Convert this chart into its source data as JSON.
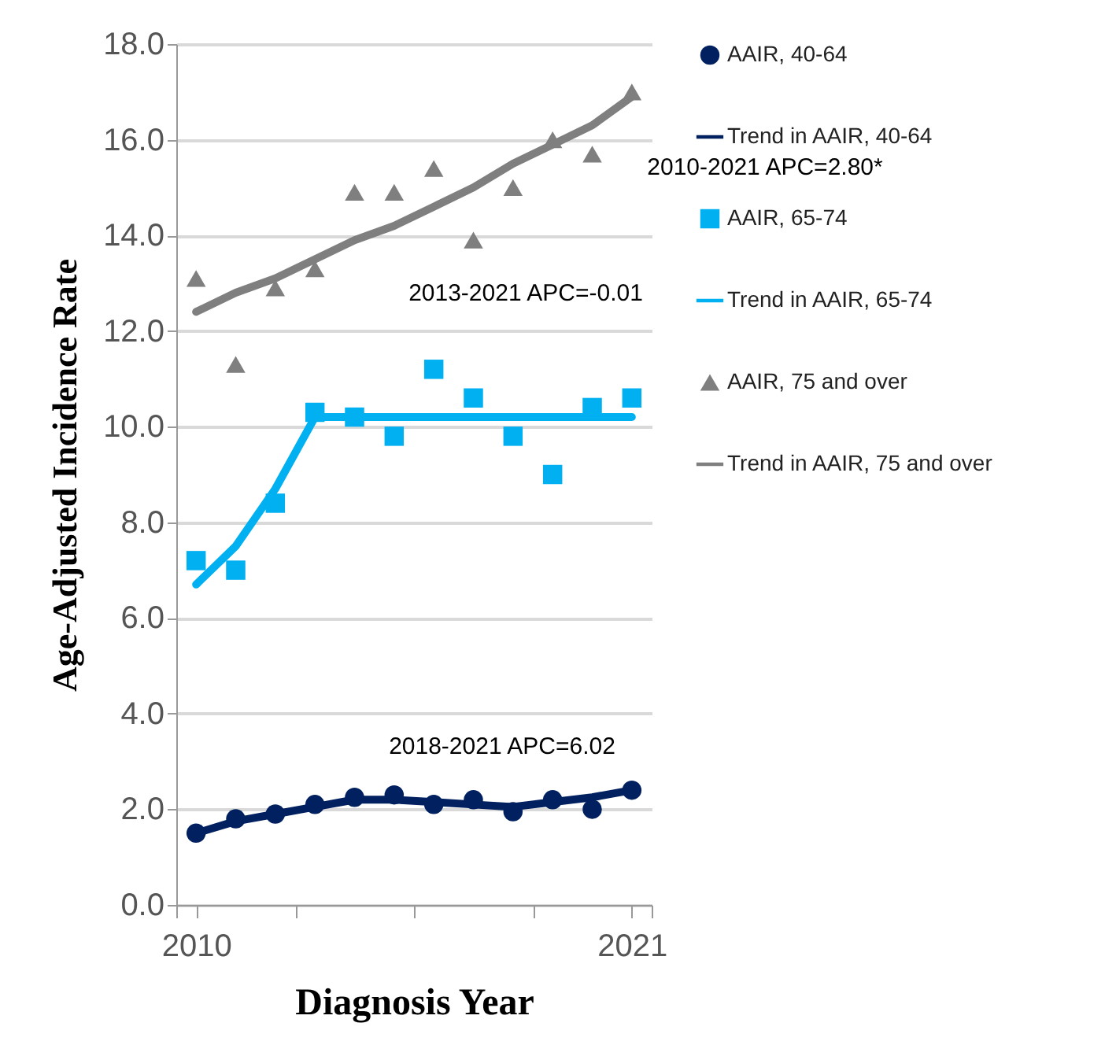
{
  "chart_data": {
    "type": "scatter",
    "xlabel": "Diagnosis Year",
    "ylabel": "Age-Adjusted Incidence Rate",
    "x": [
      2010,
      2011,
      2012,
      2013,
      2014,
      2015,
      2016,
      2017,
      2018,
      2019,
      2020,
      2021
    ],
    "xlim": [
      2009.5,
      2021.5
    ],
    "xticks": [
      {
        "value": 2009.5,
        "label": null
      },
      {
        "value": 2010,
        "label": "2010"
      },
      {
        "value": 2012.5,
        "label": null
      },
      {
        "value": 2015.5,
        "label": null
      },
      {
        "value": 2018.5,
        "label": null
      },
      {
        "value": 2021,
        "label": "2021"
      },
      {
        "value": 2021.5,
        "label": null
      }
    ],
    "ylim": [
      0,
      18
    ],
    "yticks": [
      {
        "value": 0,
        "label": "0.0"
      },
      {
        "value": 2,
        "label": "2.0"
      },
      {
        "value": 4,
        "label": "4.0"
      },
      {
        "value": 6,
        "label": "6.0"
      },
      {
        "value": 8,
        "label": "8.0"
      },
      {
        "value": 10,
        "label": "10.0"
      },
      {
        "value": 12,
        "label": "12.0"
      },
      {
        "value": 14,
        "label": "14.0"
      },
      {
        "value": 16,
        "label": "16.0"
      },
      {
        "value": 18,
        "label": "18.0"
      }
    ],
    "grid": "y",
    "legend": "right",
    "series": [
      {
        "name": "AAIR, 40-64",
        "type": "scatter",
        "marker": "circle",
        "color": "#002060",
        "values": [
          1.5,
          1.8,
          1.9,
          2.1,
          2.25,
          2.3,
          2.1,
          2.2,
          1.95,
          2.2,
          2.0,
          2.4
        ]
      },
      {
        "name": "Trend in AAIR, 40-64",
        "type": "line",
        "line_style": "solid",
        "color": "#002060",
        "values": [
          1.5,
          1.75,
          1.9,
          2.05,
          2.2,
          2.2,
          2.15,
          2.1,
          2.05,
          2.15,
          2.25,
          2.4
        ]
      },
      {
        "name": "AAIR, 65-74",
        "type": "scatter",
        "marker": "square",
        "color": "#00b0f0",
        "values": [
          7.2,
          7.0,
          8.4,
          10.3,
          10.2,
          9.8,
          11.2,
          10.6,
          9.8,
          9.0,
          10.4,
          10.6
        ]
      },
      {
        "name": "Trend in AAIR, 65-74",
        "type": "line",
        "line_style": "solid",
        "color": "#00b0f0",
        "values": [
          6.7,
          7.5,
          8.7,
          10.2,
          10.2,
          10.2,
          10.2,
          10.2,
          10.2,
          10.2,
          10.2,
          10.2
        ]
      },
      {
        "name": "AAIR, 75 and over",
        "type": "scatter",
        "marker": "triangle",
        "color": "#7f7f7f",
        "values": [
          13.1,
          11.3,
          12.9,
          13.3,
          14.9,
          14.9,
          15.4,
          13.9,
          15.0,
          16.0,
          15.7,
          17.0
        ]
      },
      {
        "name": "Trend in AAIR, 75 and over",
        "type": "line",
        "line_style": "solid",
        "color": "#7f7f7f",
        "values": [
          12.4,
          12.8,
          13.1,
          13.5,
          13.9,
          14.2,
          14.6,
          15.0,
          15.5,
          15.9,
          16.3,
          16.9
        ]
      }
    ],
    "annotations": [
      "2010-2021 APC=2.80*",
      "2013-2021 APC=-0.01",
      "2018-2021 APC=6.02"
    ]
  }
}
